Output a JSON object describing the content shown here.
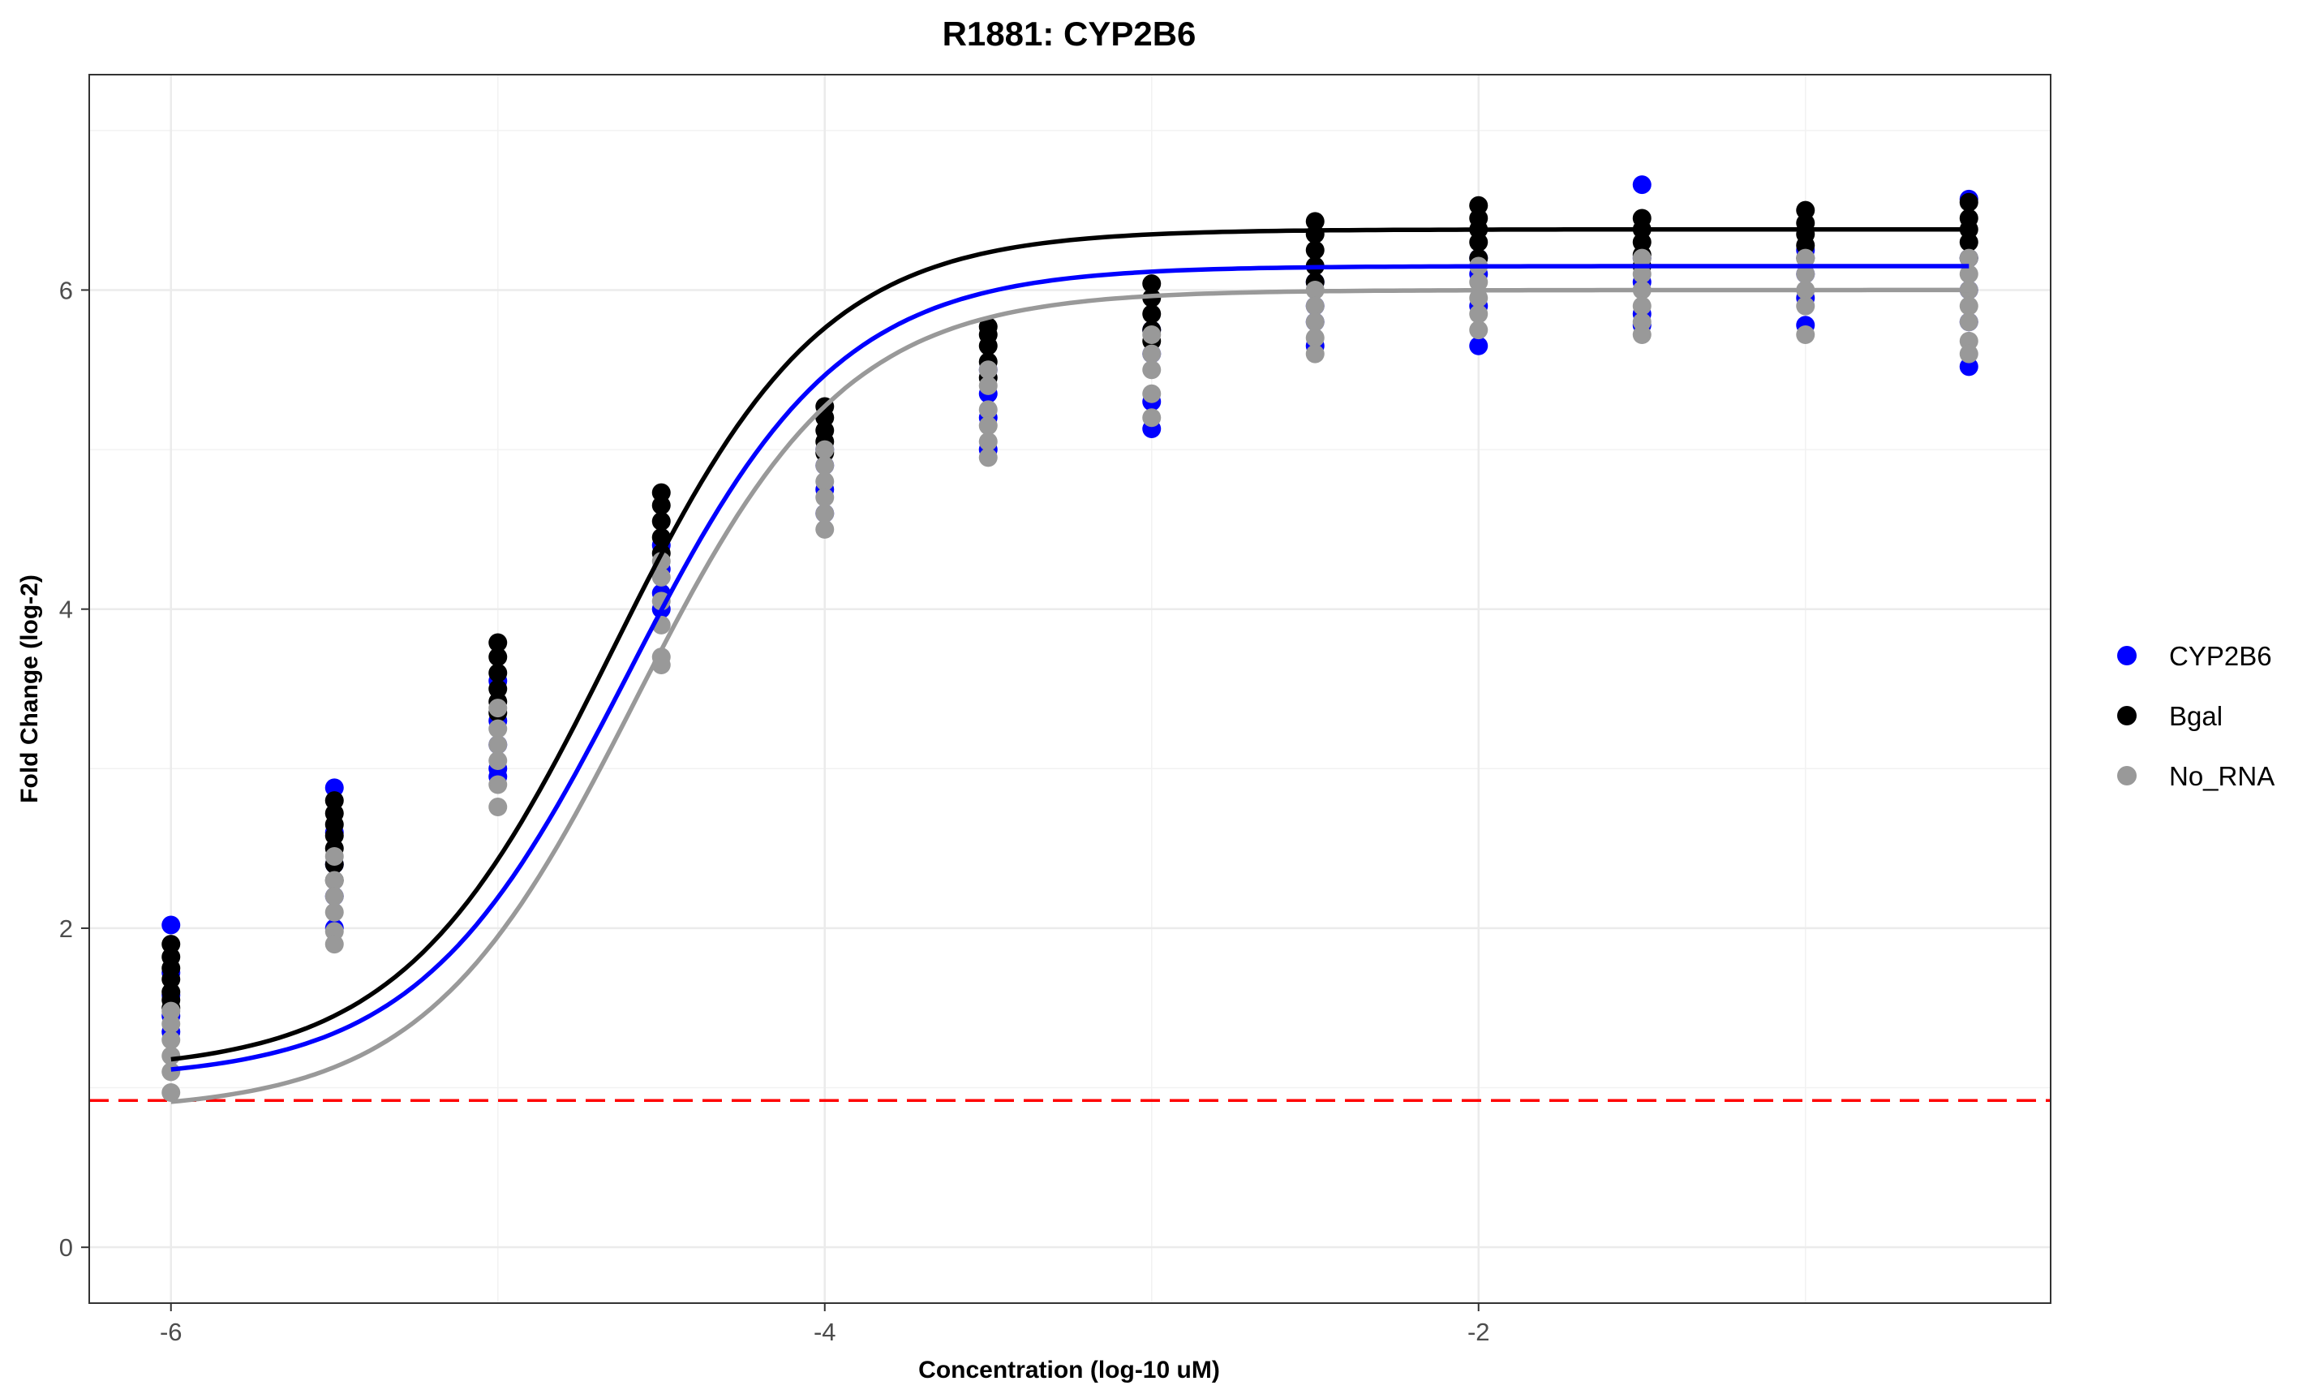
{
  "chart_data": {
    "type": "scatter",
    "title": "R1881: CYP2B6",
    "xlabel": "Concentration (log-10 uM)",
    "ylabel": "Fold Change (log-2)",
    "xlim": [
      -6.25,
      -0.25
    ],
    "ylim": [
      -0.35,
      7.35
    ],
    "x_ticks": [
      -6,
      -4,
      -2
    ],
    "x_tick_labels": [
      "-6",
      "-4",
      "-2"
    ],
    "y_ticks": [
      0,
      2,
      4,
      6
    ],
    "y_tick_labels": [
      "0",
      "2",
      "4",
      "6"
    ],
    "grid": true,
    "legend_position": "right",
    "threshold_line": {
      "y": 0.92,
      "color": "#ff0000",
      "style": "dashed"
    },
    "concentrations": [
      -6,
      -5.5,
      -5,
      -4.5,
      -4,
      -3.5,
      -3,
      -2.5,
      -2,
      -1.5,
      -1,
      -0.5
    ],
    "series": [
      {
        "name": "CYP2B6",
        "color": "#0000ff",
        "fit": {
          "bottom": 1.05,
          "top": 6.15,
          "ec50": -4.6,
          "hill": 1.35
        },
        "points": [
          [
            -6,
            [
              2.02,
              1.72,
              1.58,
              1.45,
              1.35
            ]
          ],
          [
            -5.5,
            [
              2.88,
              2.6,
              2.4,
              2.2,
              2.0
            ]
          ],
          [
            -5,
            [
              3.55,
              3.3,
              3.15,
              3.0,
              2.95
            ]
          ],
          [
            -4.5,
            [
              4.4,
              4.25,
              4.1,
              4.0
            ]
          ],
          [
            -4,
            [
              5.0,
              4.9,
              4.75,
              4.6
            ]
          ],
          [
            -3.5,
            [
              5.5,
              5.35,
              5.2,
              5.0
            ]
          ],
          [
            -3,
            [
              5.75,
              5.6,
              5.3,
              5.13
            ]
          ],
          [
            -2.5,
            [
              6.05,
              5.9,
              5.8,
              5.65
            ]
          ],
          [
            -2,
            [
              6.2,
              6.1,
              5.9,
              5.65
            ]
          ],
          [
            -1.5,
            [
              6.66,
              6.2,
              6.05,
              5.85,
              5.78
            ]
          ],
          [
            -1,
            [
              6.25,
              6.1,
              5.95,
              5.78
            ]
          ],
          [
            -0.5,
            [
              6.57,
              6.2,
              6.0,
              5.8,
              5.52
            ]
          ]
        ]
      },
      {
        "name": "Bgal",
        "color": "#000000",
        "fit": {
          "bottom": 1.1,
          "top": 6.38,
          "ec50": -4.65,
          "hill": 1.35
        },
        "points": [
          [
            -6,
            [
              1.9,
              1.82,
              1.75,
              1.68,
              1.6,
              1.55,
              1.5
            ]
          ],
          [
            -5.5,
            [
              2.8,
              2.72,
              2.65,
              2.58,
              2.5,
              2.4,
              2.3
            ]
          ],
          [
            -5,
            [
              3.79,
              3.7,
              3.6,
              3.5,
              3.42,
              3.35
            ]
          ],
          [
            -4.5,
            [
              4.73,
              4.65,
              4.55,
              4.45,
              4.35
            ]
          ],
          [
            -4,
            [
              5.27,
              5.2,
              5.12,
              5.05,
              4.98
            ]
          ],
          [
            -3.5,
            [
              5.77,
              5.72,
              5.65,
              5.55,
              5.45
            ]
          ],
          [
            -3,
            [
              6.04,
              5.95,
              5.85,
              5.75,
              5.68
            ]
          ],
          [
            -2.5,
            [
              6.43,
              6.35,
              6.25,
              6.15,
              6.05
            ]
          ],
          [
            -2,
            [
              6.53,
              6.45,
              6.38,
              6.3,
              6.2
            ]
          ],
          [
            -1.5,
            [
              6.45,
              6.38,
              6.3,
              6.22,
              6.15
            ]
          ],
          [
            -1,
            [
              6.5,
              6.42,
              6.35,
              6.28,
              6.2
            ]
          ],
          [
            -0.5,
            [
              6.55,
              6.45,
              6.38,
              6.3,
              6.2
            ]
          ]
        ]
      },
      {
        "name": "No_RNA",
        "color": "#999999",
        "fit": {
          "bottom": 0.85,
          "top": 6.0,
          "ec50": -4.58,
          "hill": 1.35
        },
        "points": [
          [
            -6,
            [
              1.48,
              1.4,
              1.3,
              1.2,
              1.1,
              0.97
            ]
          ],
          [
            -5.5,
            [
              2.45,
              2.3,
              2.2,
              2.1,
              1.98,
              1.9
            ]
          ],
          [
            -5,
            [
              3.38,
              3.25,
              3.15,
              3.05,
              2.9,
              2.76
            ]
          ],
          [
            -4.5,
            [
              4.3,
              4.2,
              4.05,
              3.9,
              3.7,
              3.65
            ]
          ],
          [
            -4,
            [
              5.0,
              4.9,
              4.8,
              4.7,
              4.6,
              4.5
            ]
          ],
          [
            -3.5,
            [
              5.5,
              5.4,
              5.25,
              5.15,
              5.05,
              4.95
            ]
          ],
          [
            -3,
            [
              5.72,
              5.6,
              5.5,
              5.35,
              5.2
            ]
          ],
          [
            -2.5,
            [
              6.0,
              5.9,
              5.8,
              5.7,
              5.6
            ]
          ],
          [
            -2,
            [
              6.15,
              6.05,
              5.95,
              5.85,
              5.75
            ]
          ],
          [
            -1.5,
            [
              6.2,
              6.1,
              6.0,
              5.9,
              5.8,
              5.72
            ]
          ],
          [
            -1,
            [
              6.2,
              6.1,
              6.0,
              5.9,
              5.72
            ]
          ],
          [
            -0.5,
            [
              6.2,
              6.1,
              6.0,
              5.9,
              5.8,
              5.68,
              5.6
            ]
          ]
        ]
      }
    ]
  }
}
